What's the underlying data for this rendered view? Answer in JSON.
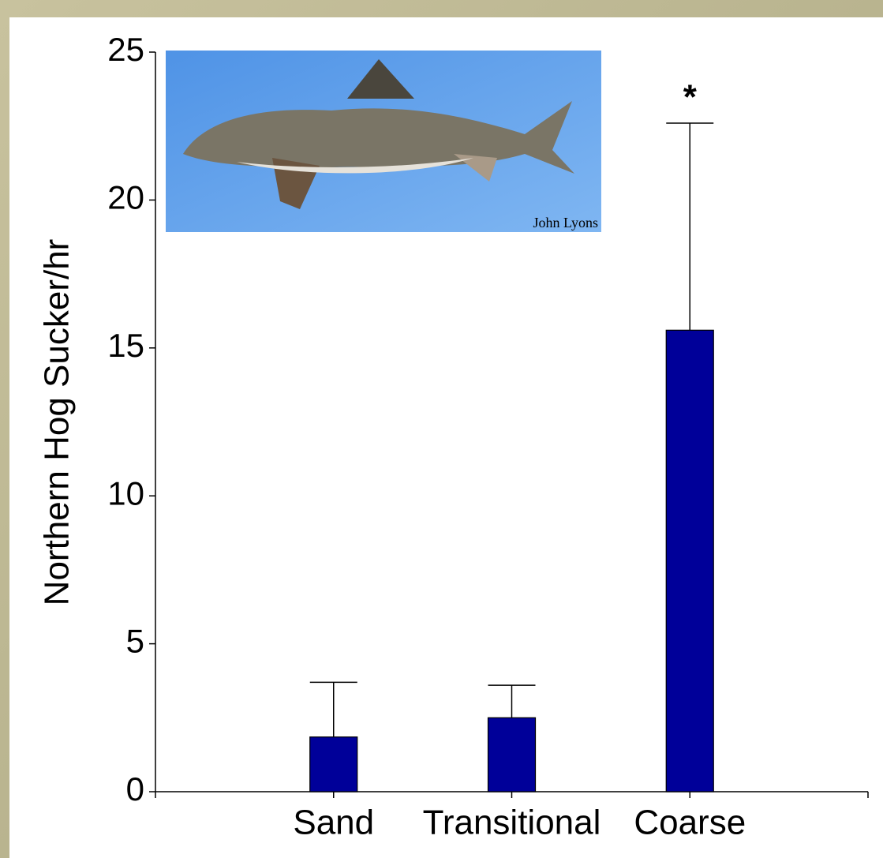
{
  "chart_data": {
    "type": "bar",
    "y_label": "Northern Hog Sucker/hr",
    "categories": [
      "Sand",
      "Transitional",
      "Coarse"
    ],
    "values": [
      1.85,
      2.5,
      15.6
    ],
    "errors": [
      1.85,
      1.1,
      7.0
    ],
    "color": "#000099",
    "ylim": [
      0,
      25
    ],
    "yticks": [
      0,
      5,
      10,
      15,
      20,
      25
    ],
    "annotations": [
      {
        "text": "*",
        "category": "Coarse"
      }
    ],
    "photo_credit": "John Lyons"
  }
}
